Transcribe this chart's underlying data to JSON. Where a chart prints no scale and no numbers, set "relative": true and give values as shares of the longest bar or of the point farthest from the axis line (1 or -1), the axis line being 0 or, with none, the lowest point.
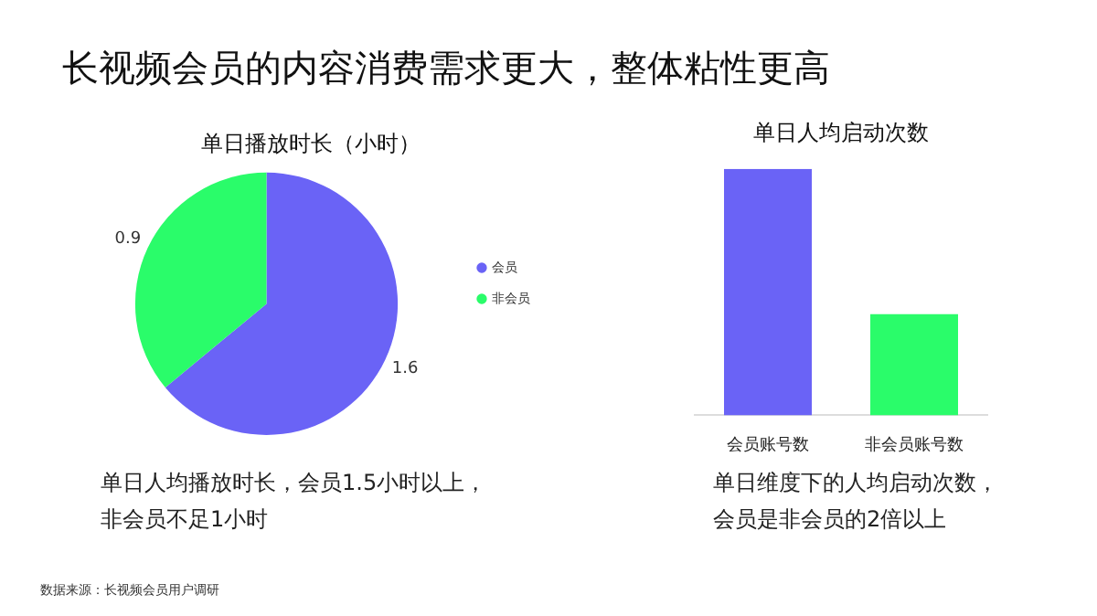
{
  "chart_data": [
    {
      "type": "other",
      "title": "长视频会员的内容消费需求更大，整体粘性更高",
      "annotations": [
        "数据来源：长视频会员用户调研"
      ]
    },
    {
      "type": "pie",
      "title": "单日播放时长（小时）",
      "categories": [
        "会员",
        "非会员"
      ],
      "values": [
        1.6,
        0.9
      ],
      "colors": [
        "#6a63f6",
        "#2afc6a"
      ],
      "data_labels": true,
      "legend": "right",
      "annotations": [
        "单日人均播放时长，会员1.5小时以上，非会员不足1小时"
      ]
    },
    {
      "type": "bar",
      "title": "单日人均启动次数",
      "categories": [
        "会员账号数",
        "非会员账号数"
      ],
      "values": [
        1,
        0.41
      ],
      "colors": [
        "#6a63f6",
        "#2afc6a"
      ],
      "relative": true,
      "grid": false,
      "annotations": [
        "单日维度下的人均启动次数，会员是非会员的2倍以上"
      ]
    }
  ]
}
